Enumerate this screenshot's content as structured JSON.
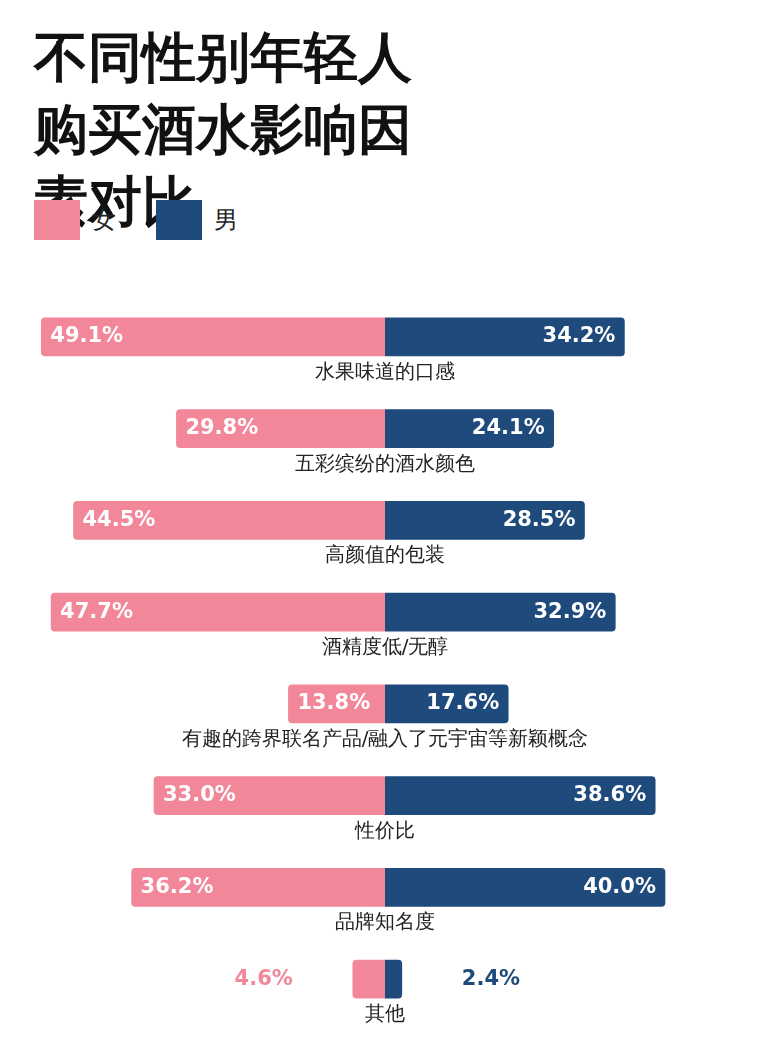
{
  "chart_data": {
    "type": "bar",
    "orientation": "horizontal",
    "title": "不同性别年轻人购买酒水影响因素对比",
    "categories": [
      "水果味道的口感",
      "五彩缤纷的酒水颜色",
      "高颜值的包装",
      "酒精度低/无醇",
      "有趣的跨界联名产品/融入了元宇宙等新颖概念",
      "性价比",
      "品牌知名度",
      "其他"
    ],
    "series": [
      {
        "name": "女",
        "color": "#f2879a",
        "values": [
          49.1,
          29.8,
          44.5,
          47.7,
          13.8,
          33.0,
          36.2,
          4.6
        ],
        "value_labels": [
          "49.1%",
          "29.8%",
          "44.5%",
          "47.7%",
          "13.8%",
          "33.0%",
          "36.2%",
          "4.6%"
        ]
      },
      {
        "name": "男",
        "color": "#1e4a7c",
        "values": [
          34.2,
          24.1,
          28.5,
          32.9,
          17.6,
          38.6,
          40.0,
          2.4
        ],
        "value_labels": [
          "34.2%",
          "24.1%",
          "28.5%",
          "32.9%",
          "17.6%",
          "38.6%",
          "40.0%",
          "2.4%"
        ]
      }
    ],
    "xlim": [
      0,
      55
    ],
    "data_labels": true,
    "legend": "top-left",
    "tick_labels": false,
    "grid": false
  }
}
